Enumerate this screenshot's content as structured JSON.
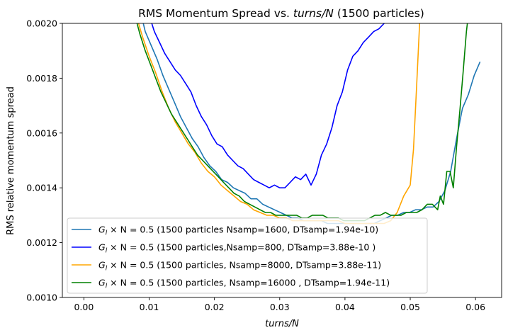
{
  "chart_data": {
    "type": "line",
    "title": "RMS Momentum Spread vs. turns/N (1500 particles)",
    "title_parts": [
      "RMS Momentum Spread vs. ",
      "turns/N",
      " (1500 particles)"
    ],
    "xlabel": "turns/N",
    "ylabel": "RMS relative momentum spread",
    "xlim": [
      -0.0033,
      0.064
    ],
    "ylim": [
      0.001,
      0.002
    ],
    "xticks": [
      {
        "value": 0.0,
        "label": "0.00"
      },
      {
        "value": 0.01,
        "label": "0.01"
      },
      {
        "value": 0.02,
        "label": "0.02"
      },
      {
        "value": 0.03,
        "label": "0.03"
      },
      {
        "value": 0.04,
        "label": "0.04"
      },
      {
        "value": 0.05,
        "label": "0.05"
      },
      {
        "value": 0.06,
        "label": "0.06"
      }
    ],
    "yticks": [
      {
        "value": 0.001,
        "label": "0.0010"
      },
      {
        "value": 0.0012,
        "label": "0.0012"
      },
      {
        "value": 0.0014,
        "label": "0.0014"
      },
      {
        "value": 0.0016,
        "label": "0.0016"
      },
      {
        "value": 0.0018,
        "label": "0.0018"
      },
      {
        "value": 0.002,
        "label": "0.0020"
      }
    ],
    "grid": false,
    "legend_position": "lower-left",
    "series": [
      {
        "name": "G_l × N = 0.5  (1500 particles Nsamp=1600, DTsamp=1.94e-10)",
        "legend_math": "G",
        "legend_sub": "l",
        "legend_rest": " × N = 0.5",
        "legend_tail": "  (1500 particles Nsamp=1600, DTsamp=1.94e-10)",
        "color": "#1f77b4",
        "x": [
          0.0085,
          0.0094,
          0.0103,
          0.0112,
          0.0121,
          0.013,
          0.0139,
          0.0148,
          0.0157,
          0.0166,
          0.0175,
          0.0184,
          0.0193,
          0.0202,
          0.0211,
          0.022,
          0.0229,
          0.0238,
          0.0247,
          0.0256,
          0.0265,
          0.0274,
          0.0283,
          0.0292,
          0.0301,
          0.031,
          0.0319,
          0.0328,
          0.0337,
          0.0346,
          0.0355,
          0.0364,
          0.0373,
          0.0382,
          0.0391,
          0.04,
          0.0409,
          0.0418,
          0.0427,
          0.0436,
          0.0445,
          0.0454,
          0.0463,
          0.0472,
          0.0481,
          0.049,
          0.0499,
          0.0508,
          0.0517,
          0.0526,
          0.0535,
          0.0544,
          0.0553,
          0.0562,
          0.0571,
          0.058,
          0.0589,
          0.0598,
          0.0607
        ],
        "y": [
          0.00206,
          0.00197,
          0.00192,
          0.00187,
          0.00181,
          0.00176,
          0.00171,
          0.00166,
          0.00162,
          0.00158,
          0.00155,
          0.00151,
          0.00148,
          0.00146,
          0.00143,
          0.00142,
          0.0014,
          0.00139,
          0.00138,
          0.00136,
          0.00136,
          0.00134,
          0.00133,
          0.00132,
          0.00131,
          0.0013,
          0.00129,
          0.00129,
          0.00128,
          0.00128,
          0.00128,
          0.00128,
          0.00127,
          0.00127,
          0.00127,
          0.00127,
          0.00127,
          0.00127,
          0.00127,
          0.00127,
          0.00127,
          0.00128,
          0.00129,
          0.0013,
          0.0013,
          0.00131,
          0.00131,
          0.00132,
          0.00132,
          0.00133,
          0.00133,
          0.00135,
          0.00139,
          0.00146,
          0.00158,
          0.00169,
          0.00174,
          0.00181,
          0.00186
        ]
      },
      {
        "name": "G_l × N = 0.5 (1500 particles,Nsamp=800, DTsamp=3.88e-10 )",
        "legend_math": "G",
        "legend_sub": "l",
        "legend_rest": " × N = 0.5",
        "legend_tail": " (1500 particles,Nsamp=800, DTsamp=3.88e-10 )",
        "color": "#0000ff",
        "x": [
          0.01,
          0.0108,
          0.0116,
          0.0124,
          0.0132,
          0.014,
          0.0148,
          0.0156,
          0.0164,
          0.0172,
          0.018,
          0.0188,
          0.0196,
          0.0204,
          0.0212,
          0.022,
          0.0228,
          0.0236,
          0.0244,
          0.0252,
          0.026,
          0.0268,
          0.0276,
          0.0284,
          0.0292,
          0.03,
          0.0308,
          0.0316,
          0.0324,
          0.0332,
          0.034,
          0.0348,
          0.0356,
          0.0364,
          0.0372,
          0.038,
          0.0388,
          0.0396,
          0.0404,
          0.0412,
          0.042,
          0.0428,
          0.0436,
          0.0444,
          0.0452,
          0.046,
          0.0468
        ],
        "y": [
          0.00203,
          0.00197,
          0.00193,
          0.00189,
          0.00186,
          0.00183,
          0.00181,
          0.00178,
          0.00175,
          0.0017,
          0.00166,
          0.00163,
          0.00159,
          0.00156,
          0.00155,
          0.00152,
          0.0015,
          0.00148,
          0.00147,
          0.00145,
          0.00143,
          0.00142,
          0.00141,
          0.0014,
          0.00141,
          0.0014,
          0.0014,
          0.00142,
          0.00144,
          0.00143,
          0.00145,
          0.00141,
          0.00145,
          0.00152,
          0.00156,
          0.00162,
          0.0017,
          0.00175,
          0.00183,
          0.00188,
          0.0019,
          0.00193,
          0.00195,
          0.00197,
          0.00198,
          0.002,
          0.00202
        ]
      },
      {
        "name": "G_l × N = 0.5 (1500 particles, Nsamp=8000, DTsamp=3.88e-11)",
        "legend_math": "G",
        "legend_sub": "l",
        "legend_rest": " × N = 0.5",
        "legend_tail": " (1500 particles, Nsamp=8000, DTsamp=3.88e-11)",
        "color": "#ffa500",
        "x": [
          0.008,
          0.009,
          0.01,
          0.011,
          0.012,
          0.013,
          0.014,
          0.015,
          0.016,
          0.017,
          0.018,
          0.019,
          0.02,
          0.021,
          0.022,
          0.023,
          0.024,
          0.025,
          0.026,
          0.027,
          0.028,
          0.029,
          0.03,
          0.031,
          0.032,
          0.033,
          0.034,
          0.035,
          0.036,
          0.037,
          0.038,
          0.039,
          0.04,
          0.041,
          0.042,
          0.043,
          0.044,
          0.045,
          0.046,
          0.047,
          0.048,
          0.049,
          0.05,
          0.0505,
          0.051,
          0.0515
        ],
        "y": [
          0.00203,
          0.00195,
          0.00188,
          0.00182,
          0.00175,
          0.00169,
          0.00164,
          0.0016,
          0.00156,
          0.00153,
          0.00149,
          0.00146,
          0.00144,
          0.00141,
          0.00139,
          0.00137,
          0.00135,
          0.00134,
          0.00132,
          0.00131,
          0.0013,
          0.0013,
          0.00129,
          0.00129,
          0.00128,
          0.00128,
          0.00128,
          0.00128,
          0.00128,
          0.00128,
          0.00128,
          0.00128,
          0.00127,
          0.00127,
          0.00127,
          0.00127,
          0.00127,
          0.00127,
          0.00127,
          0.00128,
          0.00131,
          0.00137,
          0.00141,
          0.00154,
          0.00178,
          0.00203
        ]
      },
      {
        "name": "G_l × N = 0.5 (1500 particles, Nsamp=16000 , DTsamp=1.94e-11)",
        "legend_math": "G",
        "legend_sub": "l",
        "legend_rest": " × N = 0.5",
        "legend_tail": " (1500 particles, Nsamp=16000 , DTsamp=1.94e-11)",
        "color": "#008000",
        "x": [
          0.0078,
          0.0086,
          0.0094,
          0.0102,
          0.011,
          0.0118,
          0.0126,
          0.0134,
          0.0142,
          0.015,
          0.0158,
          0.0166,
          0.0174,
          0.0182,
          0.019,
          0.0198,
          0.0206,
          0.0214,
          0.0222,
          0.023,
          0.0238,
          0.0246,
          0.0254,
          0.0262,
          0.027,
          0.0278,
          0.0286,
          0.0294,
          0.0302,
          0.031,
          0.0318,
          0.0326,
          0.0334,
          0.0342,
          0.035,
          0.0358,
          0.0366,
          0.0374,
          0.0382,
          0.039,
          0.0398,
          0.0406,
          0.0414,
          0.0422,
          0.043,
          0.0438,
          0.0446,
          0.0454,
          0.0462,
          0.047,
          0.0478,
          0.0486,
          0.0494,
          0.0502,
          0.051,
          0.0518,
          0.0526,
          0.0534,
          0.0542,
          0.0546,
          0.0551,
          0.0556,
          0.0561,
          0.0566,
          0.0571,
          0.0576,
          0.0581,
          0.0586,
          0.059
        ],
        "y": [
          0.00203,
          0.00196,
          0.0019,
          0.00185,
          0.0018,
          0.00175,
          0.00171,
          0.00167,
          0.00164,
          0.00161,
          0.00158,
          0.00155,
          0.00152,
          0.0015,
          0.00148,
          0.00146,
          0.00144,
          0.00142,
          0.0014,
          0.00138,
          0.00137,
          0.00135,
          0.00134,
          0.00133,
          0.00132,
          0.00131,
          0.00131,
          0.0013,
          0.0013,
          0.0013,
          0.0013,
          0.0013,
          0.00129,
          0.00129,
          0.0013,
          0.0013,
          0.0013,
          0.00129,
          0.00129,
          0.00129,
          0.00128,
          0.00128,
          0.00128,
          0.00128,
          0.00128,
          0.00129,
          0.0013,
          0.0013,
          0.00131,
          0.0013,
          0.0013,
          0.0013,
          0.00131,
          0.00131,
          0.00131,
          0.00132,
          0.00134,
          0.00134,
          0.00132,
          0.00137,
          0.00134,
          0.00146,
          0.00146,
          0.0014,
          0.00155,
          0.00168,
          0.00182,
          0.00197,
          0.00205
        ]
      }
    ]
  }
}
